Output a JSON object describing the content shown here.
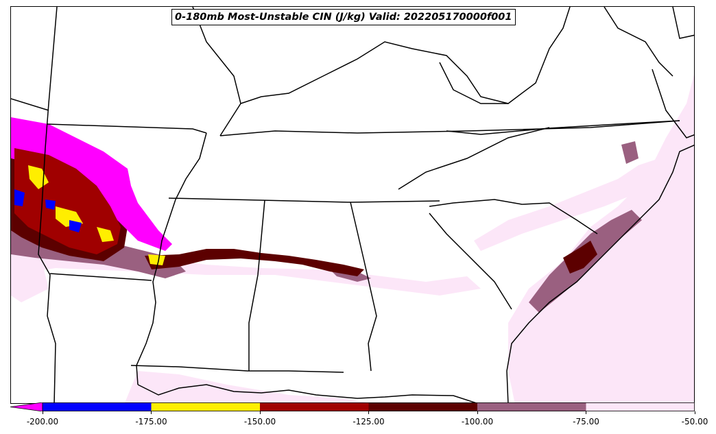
{
  "title": "0-180mb Most-Unstable CIN (J/kg) Valid: 202205170000f001",
  "colorbar": {
    "ticks": [
      "-200.00",
      "-175.00",
      "-150.00",
      "-125.00",
      "-100.00",
      "-75.00",
      "-50.00"
    ],
    "levels": [
      -200,
      -175,
      -150,
      -125,
      -100,
      -75,
      -50
    ],
    "colors": [
      "#0000ff",
      "#ffee00",
      "#a00000",
      "#5c0000",
      "#9a6080",
      "#fce6f8"
    ],
    "under_color": "#ff00ff",
    "extend": "min"
  }
}
